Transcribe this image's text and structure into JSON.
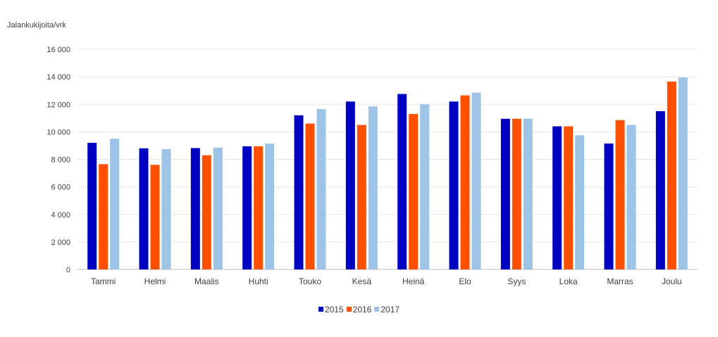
{
  "chart_data": {
    "type": "bar",
    "ylabel": "Jalankukijoita/vrk",
    "ylim": [
      0,
      16000
    ],
    "yticks": [
      0,
      2000,
      4000,
      6000,
      8000,
      10000,
      12000,
      14000,
      16000
    ],
    "ytick_labels": [
      "0",
      "2 000",
      "4 000",
      "6 000",
      "8 000",
      "10 000",
      "12 000",
      "14 000",
      "16 000"
    ],
    "grid": true,
    "legend_position": "bottom",
    "categories": [
      "Tammi",
      "Helmi",
      "Maalis",
      "Huhti",
      "Touko",
      "Kesä",
      "Heinä",
      "Elo",
      "Syys",
      "Loka",
      "Marras",
      "Joulu"
    ],
    "series": [
      {
        "name": "2015",
        "color": "#0000c0",
        "values": [
          9200,
          8800,
          8820,
          8950,
          11200,
          12200,
          12750,
          12200,
          10950,
          10400,
          9150,
          11500
        ]
      },
      {
        "name": "2016",
        "color": "#ff5000",
        "values": [
          7650,
          7600,
          8300,
          8950,
          10600,
          10500,
          11300,
          12650,
          10950,
          10400,
          10850,
          13650
        ]
      },
      {
        "name": "2017",
        "color": "#9dc3e6",
        "values": [
          9500,
          8750,
          8850,
          9150,
          11650,
          11850,
          12000,
          12850,
          10950,
          9750,
          10500,
          13950
        ]
      }
    ]
  }
}
